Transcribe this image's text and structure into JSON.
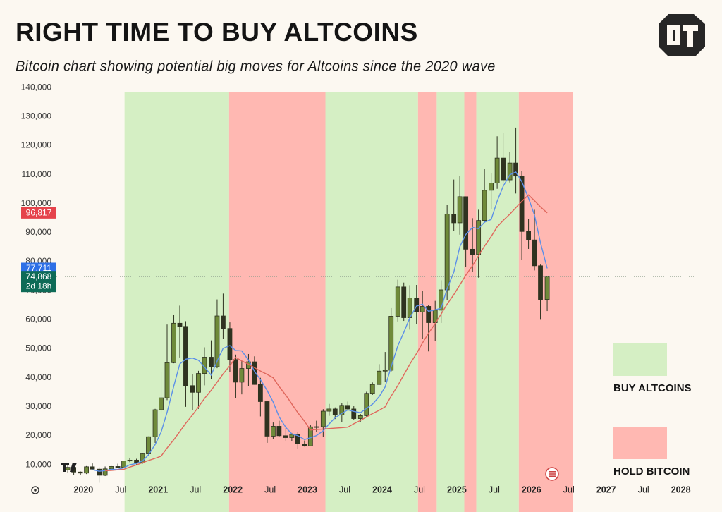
{
  "chart_data": {
    "type": "candlestick",
    "title": "RIGHT TIME TO BUY ALTCOINS",
    "subtitle": "Bitcoin chart showing potential big moves for Altcoins since the 2020 wave",
    "xlim": [
      2019.26,
      2028.23
    ],
    "xticks": [
      2020,
      {
        "value": 2020.5,
        "label": "Jul"
      },
      2021,
      {
        "value": 2021.5,
        "label": "Jul"
      },
      2022,
      {
        "value": 2022.5,
        "label": "Jul"
      },
      2023,
      {
        "value": 2023.5,
        "label": "Jul"
      },
      2024,
      {
        "value": 2024.5,
        "label": "Jul"
      },
      2025,
      {
        "value": 2025.5,
        "label": "Jul"
      },
      2026,
      {
        "value": 2026.5,
        "label": "Jul"
      },
      2027,
      {
        "value": 2027.5,
        "label": "Jul"
      },
      2028
    ],
    "ylim": [
      3000,
      141000
    ],
    "yticks": [
      {
        "value": 10000,
        "label": "10,000"
      },
      {
        "value": 20000,
        "label": "20,000"
      },
      {
        "value": 30000,
        "label": "30,000"
      },
      {
        "value": 40000,
        "label": "40,000"
      },
      {
        "value": 50000,
        "label": "50,000"
      },
      {
        "value": 60000,
        "label": "60,000"
      },
      {
        "value": 70000,
        "label": "70,000"
      },
      {
        "value": 80000,
        "label": "80,000"
      },
      {
        "value": 90000,
        "label": "90,000"
      },
      {
        "value": 100000,
        "label": "100,000"
      },
      {
        "value": 110000,
        "label": "110,000"
      },
      {
        "value": 120000,
        "label": "120,000"
      },
      {
        "value": 130000,
        "label": "130,000"
      },
      {
        "value": 140000,
        "label": "140,000"
      }
    ],
    "legend": [
      {
        "label": "BUY ALTCOINS",
        "color": "#d5efc4",
        "ranges": [
          [
            2020.55,
            2021.95
          ],
          [
            2023.24,
            2024.48
          ],
          [
            2024.73,
            2025.1
          ],
          [
            2025.26,
            2025.83
          ]
        ]
      },
      {
        "label": "HOLD BITCOIN",
        "color": "#ffb8b2",
        "ranges": [
          [
            2021.95,
            2023.24
          ],
          [
            2024.48,
            2024.73
          ],
          [
            2025.1,
            2025.26
          ],
          [
            2025.83,
            2026.55
          ]
        ]
      }
    ],
    "up_color": "#6f8a3a",
    "down_color": "#2f3320",
    "x": [
      2019.79,
      2019.87,
      2019.96,
      2020.04,
      2020.12,
      2020.21,
      2020.29,
      2020.37,
      2020.46,
      2020.54,
      2020.62,
      2020.71,
      2020.79,
      2020.87,
      2020.96,
      2021.04,
      2021.12,
      2021.21,
      2021.29,
      2021.37,
      2021.46,
      2021.54,
      2021.62,
      2021.71,
      2021.79,
      2021.87,
      2021.96,
      2022.04,
      2022.12,
      2022.21,
      2022.29,
      2022.37,
      2022.46,
      2022.54,
      2022.62,
      2022.71,
      2022.79,
      2022.87,
      2022.96,
      2023.04,
      2023.12,
      2023.21,
      2023.29,
      2023.37,
      2023.46,
      2023.54,
      2023.62,
      2023.71,
      2023.79,
      2023.87,
      2023.96,
      2024.04,
      2024.12,
      2024.21,
      2024.29,
      2024.37,
      2024.46,
      2024.54,
      2024.62,
      2024.71,
      2024.79,
      2024.87,
      2024.96,
      2025.04,
      2025.12,
      2025.21,
      2025.29,
      2025.37,
      2025.46,
      2025.54,
      2025.62,
      2025.71,
      2025.79,
      2025.87,
      2025.96,
      2026.04,
      2026.12,
      2026.21
    ],
    "ohlc": {
      "open": [
        8300,
        9150,
        7550,
        7190,
        9350,
        8540,
        6420,
        8630,
        9450,
        9140,
        11350,
        11650,
        10780,
        13800,
        19700,
        28990,
        33100,
        45200,
        58800,
        57700,
        37300,
        35000,
        41500,
        47100,
        43800,
        61300,
        57000,
        46300,
        38500,
        43200,
        45500,
        37700,
        31800,
        19900,
        23300,
        20050,
        19400,
        20500,
        17200,
        16550,
        23100,
        23150,
        28500,
        29250,
        27200,
        30500,
        29250,
        25950,
        26950,
        34650,
        37700,
        42300,
        42600,
        61200,
        71300,
        60700,
        67500,
        62700,
        64600,
        59000,
        63300,
        70300,
        96400,
        93400,
        102400,
        84300,
        82500,
        94200,
        104600,
        107100,
        115700,
        108200,
        114000,
        109500,
        90400,
        87500,
        78600,
        67000
      ],
      "high": [
        10300,
        9500,
        7750,
        9600,
        10500,
        9200,
        9450,
        10080,
        10400,
        11450,
        12480,
        12100,
        14100,
        19800,
        29300,
        41950,
        58350,
        61800,
        64850,
        59500,
        41300,
        42400,
        50500,
        52900,
        67000,
        69000,
        59100,
        48000,
        45800,
        48200,
        47400,
        40000,
        31900,
        24600,
        25200,
        22700,
        21000,
        21400,
        18400,
        23900,
        25200,
        29200,
        31000,
        29800,
        31400,
        31800,
        30200,
        27500,
        35200,
        38400,
        44700,
        48900,
        64000,
        73800,
        72800,
        71900,
        72000,
        70000,
        65100,
        66500,
        73600,
        99600,
        108300,
        109600,
        102500,
        95000,
        97900,
        111900,
        110500,
        123200,
        124500,
        117900,
        126200,
        111200,
        94600,
        97900,
        79000,
        74500
      ],
      "low": [
        7400,
        6550,
        6450,
        6850,
        8450,
        3850,
        6150,
        8100,
        8900,
        8950,
        10950,
        9850,
        10400,
        13200,
        17600,
        28100,
        32300,
        45000,
        47000,
        30000,
        28800,
        29300,
        37400,
        39600,
        43300,
        53300,
        42000,
        32900,
        34300,
        37200,
        37600,
        26700,
        17600,
        18800,
        19600,
        18200,
        18200,
        15500,
        16300,
        16500,
        21400,
        19600,
        26900,
        25800,
        24800,
        28900,
        25400,
        24900,
        26600,
        34100,
        37600,
        38600,
        41900,
        59400,
        59600,
        56600,
        58500,
        53500,
        49100,
        52600,
        58900,
        66800,
        90500,
        89300,
        78200,
        76600,
        74500,
        93400,
        98200,
        105100,
        107300,
        107300,
        103500,
        80600,
        84400,
        77000,
        60000,
        63000
      ],
      "close": [
        9150,
        7550,
        7190,
        9350,
        8540,
        6420,
        8630,
        9450,
        9140,
        11350,
        11650,
        10780,
        13800,
        19700,
        28990,
        33100,
        45200,
        58800,
        57700,
        37300,
        35000,
        41500,
        47100,
        43800,
        61300,
        57000,
        46300,
        38500,
        43200,
        45500,
        37700,
        31800,
        19900,
        23300,
        20050,
        19400,
        20500,
        17200,
        16550,
        23100,
        23150,
        28500,
        29250,
        27200,
        30500,
        29250,
        25950,
        26950,
        34650,
        37700,
        42300,
        42600,
        61200,
        71300,
        60700,
        67500,
        62700,
        64600,
        59000,
        63300,
        70300,
        96400,
        93400,
        102400,
        84300,
        82500,
        94200,
        104600,
        107100,
        115700,
        108200,
        114000,
        109500,
        90400,
        87500,
        78600,
        67000,
        74868
      ]
    },
    "lines": [
      {
        "color": "#5b8fe8",
        "values": [
          null,
          null,
          null,
          null,
          8356,
          7810,
          8026,
          8478,
          8436,
          8998,
          10044,
          10474,
          11344,
          13456,
          16984,
          21274,
          28158,
          37158,
          44758,
          46420,
          46800,
          46060,
          43720,
          40940,
          45740,
          50140,
          51100,
          49380,
          49260,
          46100,
          42240,
          39340,
          35620,
          31640,
          26550,
          22890,
          20630,
          20090,
          18740,
          19350,
          20100,
          21700,
          24110,
          26240,
          27720,
          28940,
          28430,
          27970,
          29460,
          30900,
          33510,
          36840,
          43690,
          51020,
          55620,
          60660,
          64680,
          65360,
          62900,
          63420,
          63980,
          70720,
          76480,
          85160,
          89360,
          91800,
          91360,
          93600,
          94540,
          100820,
          105960,
          109920,
          110900,
          107560,
          101920,
          96000,
          86600,
          77711
        ]
      },
      {
        "color": "#e0675c",
        "values": [
          null,
          null,
          null,
          null,
          null,
          null,
          8000,
          8100,
          8300,
          8500,
          9250,
          10000,
          10750,
          11500,
          12250,
          13000,
          15833,
          18667,
          21500,
          24333,
          27167,
          30000,
          32833,
          35667,
          38500,
          41333,
          44167,
          47000,
          45833,
          44667,
          43500,
          42333,
          41167,
          40000,
          37000,
          34000,
          31000,
          28000,
          25000,
          22000,
          22167,
          22333,
          22500,
          22667,
          22833,
          23000,
          24167,
          25333,
          26500,
          27667,
          28833,
          30000,
          33667,
          37333,
          41000,
          44667,
          48333,
          52000,
          55333,
          58667,
          62000,
          65333,
          68667,
          72000,
          75333,
          78667,
          82000,
          85333,
          88667,
          92000,
          94200,
          96400,
          98600,
          100800,
          103000,
          101000,
          98900,
          96817
        ]
      }
    ],
    "price_tags": [
      {
        "value": 96817,
        "label": "96,817",
        "color": "#e5434b"
      },
      {
        "value": 77711,
        "label": "77,711",
        "color": "#2d6fe6"
      },
      {
        "value": 74868,
        "label": "74,868",
        "sublabel": "2d 18h",
        "color": "#0e6b57",
        "line": true
      }
    ]
  }
}
